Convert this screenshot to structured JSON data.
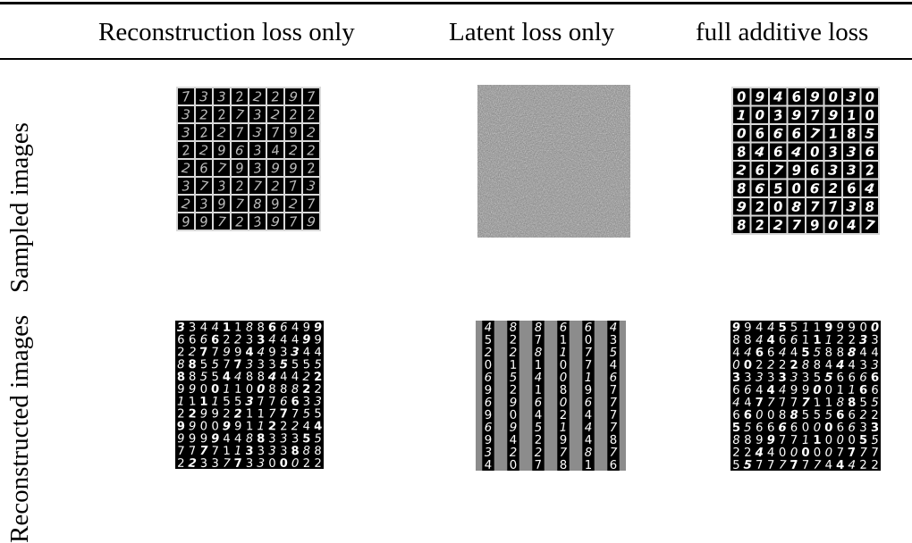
{
  "table": {
    "columns": [
      "Reconstruction loss only",
      "Latent loss only",
      "full additive loss"
    ],
    "rows": [
      "Sampled images",
      "Reconstructed images"
    ]
  },
  "panels": {
    "sampled_reconstruction": {
      "grid": 8,
      "digits": [
        "7",
        "3",
        "3",
        "2",
        "2",
        "2",
        "9",
        "7",
        "3",
        "2",
        "2",
        "7",
        "3",
        "2",
        "2",
        "2",
        "3",
        "2",
        "2",
        "7",
        "3",
        "7",
        "9",
        "2",
        "2",
        "2",
        "9",
        "6",
        "3",
        "4",
        "2",
        "2",
        "2",
        "6",
        "7",
        "9",
        "3",
        "9",
        "9",
        "2",
        "3",
        "7",
        "3",
        "2",
        "7",
        "2",
        "7",
        "3",
        "2",
        "3",
        "9",
        "7",
        "8",
        "9",
        "2",
        "7",
        "9",
        "9",
        "7",
        "2",
        "3",
        "9",
        "7",
        "9"
      ]
    },
    "sampled_full": {
      "grid": 8,
      "digits": [
        "0",
        "9",
        "4",
        "6",
        "9",
        "0",
        "3",
        "0",
        "1",
        "0",
        "3",
        "9",
        "7",
        "9",
        "1",
        "0",
        "0",
        "6",
        "6",
        "6",
        "7",
        "1",
        "8",
        "5",
        "8",
        "4",
        "6",
        "4",
        "0",
        "3",
        "3",
        "6",
        "2",
        "6",
        "7",
        "9",
        "6",
        "3",
        "3",
        "2",
        "8",
        "6",
        "5",
        "0",
        "6",
        "2",
        "6",
        "4",
        "9",
        "2",
        "0",
        "8",
        "7",
        "7",
        "3",
        "8",
        "8",
        "2",
        "2",
        "7",
        "9",
        "0",
        "4",
        "7"
      ]
    },
    "reconstructed_reconstruction": {
      "rows": [
        "3344118866499",
        "6666223344499",
        "2277994493344",
        "8855773335555",
        "8855448844422",
        "9900110088822",
        "1111553776633",
        "2299221177755",
        "9900991122244",
        "9999448833355",
        "7777113333888",
        "2233773300022"
      ]
    },
    "reconstructed_latent": {
      "columns": [
        [
          "4",
          "5",
          "2",
          "0",
          "6",
          "9",
          "6",
          "9",
          "6",
          "9",
          "3",
          "4"
        ],
        [
          "8",
          "2",
          "2",
          "1",
          "5",
          "2",
          "9",
          "0",
          "9",
          "4",
          "2",
          "0"
        ],
        [
          "8",
          "7",
          "8",
          "1",
          "4",
          "1",
          "6",
          "4",
          "5",
          "2",
          "2",
          "7"
        ],
        [
          "6",
          "1",
          "1",
          "0",
          "0",
          "8",
          "0",
          "2",
          "1",
          "9",
          "7",
          "8"
        ],
        [
          "6",
          "0",
          "7",
          "7",
          "1",
          "9",
          "6",
          "4",
          "4",
          "4",
          "8",
          "1"
        ],
        [
          "4",
          "3",
          "5",
          "4",
          "6",
          "7",
          "7",
          "7",
          "7",
          "8",
          "7",
          "6"
        ]
      ]
    },
    "reconstructed_full": {
      "rows": [
        "9944551199900",
        "8844661112233",
        "4466445588844",
        "0022228844433",
        "3333333556666",
        "6644499001166",
        "4477777118855",
        "6600885556622",
        "5566660006633",
        "8899771100055",
        "2244000007777",
        "5577777744422"
      ]
    }
  }
}
